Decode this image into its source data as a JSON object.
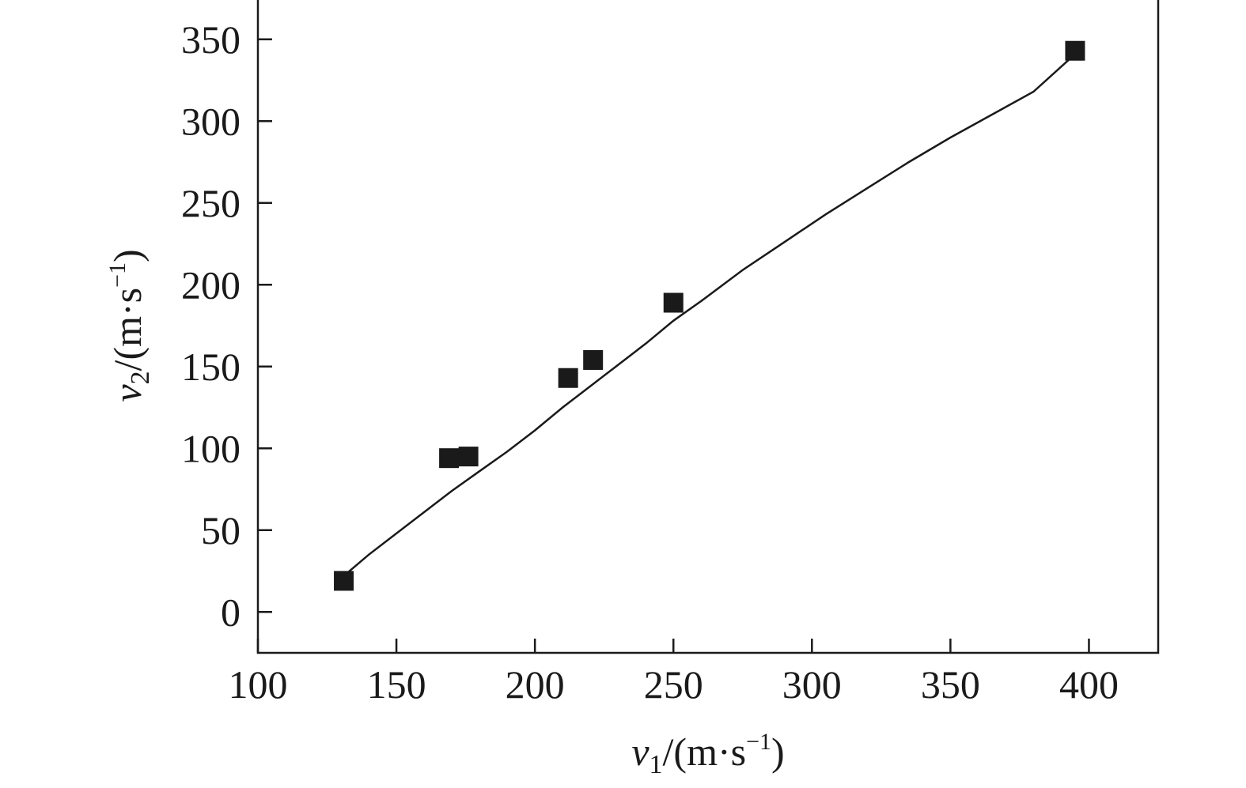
{
  "chart_data": {
    "type": "scatter",
    "x": [
      131,
      169,
      176,
      212,
      221,
      250,
      395
    ],
    "y": [
      19,
      94,
      95,
      143,
      154,
      189,
      343
    ],
    "fit_curve": {
      "x": [
        131,
        140,
        150,
        160,
        170,
        180,
        190,
        200,
        210,
        220,
        230,
        240,
        250,
        260,
        275,
        290,
        305,
        320,
        335,
        350,
        365,
        380,
        395
      ],
      "y": [
        22,
        35,
        48,
        61,
        74,
        86,
        98,
        111,
        125,
        138,
        151,
        164,
        178,
        190,
        209,
        226,
        243,
        259,
        275,
        290,
        304,
        318,
        341
      ]
    },
    "xlabel": {
      "var": "v",
      "sub": "1",
      "unit_pre": "/(m·s",
      "sup": "−1",
      "unit_post": ")"
    },
    "ylabel": {
      "var": "v",
      "sub": "2",
      "unit_pre": "/(m·s",
      "sup": "−1",
      "unit_post": ")"
    },
    "xlim": [
      100,
      425
    ],
    "ylim": [
      -25,
      375
    ],
    "xticks": [
      100,
      150,
      200,
      250,
      300,
      350,
      400
    ],
    "yticks": [
      0,
      50,
      100,
      150,
      200,
      250,
      300,
      350
    ],
    "xtick_labels": [
      "100",
      "150",
      "200",
      "250",
      "300",
      "350",
      "400"
    ],
    "ytick_labels": [
      "0",
      "50",
      "100",
      "150",
      "200",
      "250",
      "300",
      "350"
    ],
    "grid": false,
    "marker": "square",
    "colors": {
      "marker": "#1a1a1a",
      "line": "#1a1a1a",
      "axis": "#1a1a1a"
    }
  }
}
